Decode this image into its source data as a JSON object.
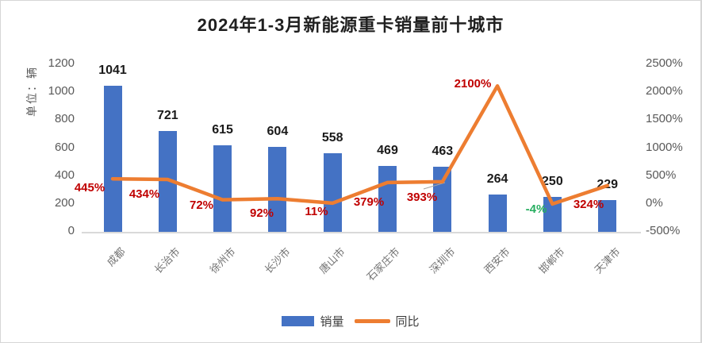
{
  "title": "2024年1-3月新能源重卡销量前十城市",
  "chart_data": {
    "type": "bar+line",
    "title": "2024年1-3月新能源重卡销量前十城市",
    "categories": [
      "成都",
      "长治市",
      "徐州市",
      "长沙市",
      "唐山市",
      "石家庄市",
      "深圳市",
      "西安市",
      "邯郸市",
      "天津市"
    ],
    "series": [
      {
        "name": "销量",
        "type": "bar",
        "axis": "left",
        "color": "#4472C4",
        "values": [
          1041,
          721,
          615,
          604,
          558,
          469,
          463,
          264,
          250,
          229
        ],
        "labels": [
          "1041",
          "721",
          "615",
          "604",
          "558",
          "469",
          "463",
          "264",
          "250",
          "229"
        ]
      },
      {
        "name": "同比",
        "type": "line",
        "axis": "right",
        "color": "#ED7D31",
        "values_pct": [
          445,
          434,
          72,
          92,
          11,
          379,
          393,
          2100,
          -4,
          324
        ],
        "labels": [
          "445%",
          "434%",
          "72%",
          "92%",
          "11%",
          "379%",
          "393%",
          "2100%",
          "-4%",
          "324%"
        ]
      }
    ],
    "left_axis": {
      "title": "单位：辆",
      "min": 0,
      "max": 1200,
      "tick_interval": 200,
      "ticks": [
        "1200",
        "1000",
        "800",
        "600",
        "400",
        "200",
        "0"
      ]
    },
    "right_axis": {
      "min": -500,
      "max": 2500,
      "tick_interval": 500,
      "ticks": [
        "2500%",
        "2000%",
        "1500%",
        "1000%",
        "500%",
        "0%",
        "-500%"
      ]
    },
    "legend": {
      "position": "bottom",
      "items": [
        "销量",
        "同比"
      ]
    },
    "grid": "off"
  },
  "colors": {
    "bar": "#4472C4",
    "line": "#ED7D31",
    "bar_label": "#1A1A1A",
    "pct_label_positive": "#C00000",
    "pct_label_negative": "#27AE60",
    "axis_text": "#595959",
    "title_text": "#1F1F1F",
    "axis_line": "#D9D9D9",
    "leader_line": "#A6A6A6"
  }
}
